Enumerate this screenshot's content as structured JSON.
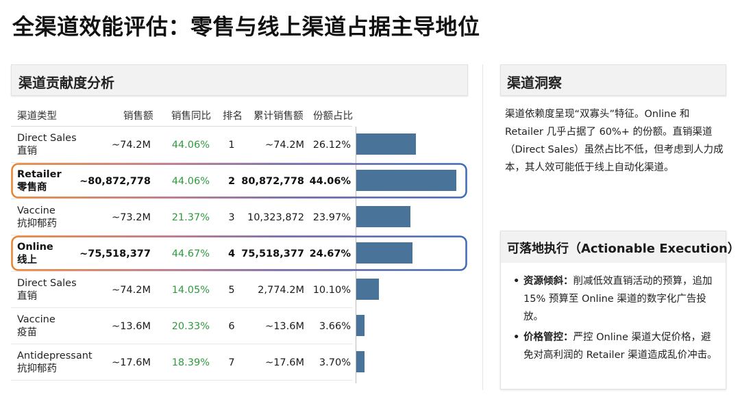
{
  "title": "全渠道效能评估：零售与线上渠道占据主导地位",
  "left_panel": {
    "title": "渠道贡献度分析"
  },
  "table": {
    "headers": [
      "渠道类型",
      "销售额",
      "销售同比",
      "排名",
      "累计销售额",
      "份额占比"
    ],
    "rows": [
      {
        "name_en": "Direct Sales",
        "name_cn": "直销",
        "sales": "~74.2M",
        "yoy": "44.06%",
        "rank": "1",
        "cumulative": "~74.2M",
        "share": "26.12%",
        "share_value": 26.12,
        "highlight": false
      },
      {
        "name_en": "Retailer",
        "name_cn": "零售商",
        "sales": "~80,872,778",
        "yoy": "44.06%",
        "rank": "2",
        "cumulative": "80,872,778",
        "share": "44.06%",
        "share_value": 44.06,
        "highlight": true
      },
      {
        "name_en": "Vaccine",
        "name_cn": "抗抑郁药",
        "sales": "~73.2M",
        "yoy": "21.37%",
        "rank": "3",
        "cumulative": "10,323,872",
        "share": "23.97%",
        "share_value": 23.97,
        "highlight": false
      },
      {
        "name_en": "Online",
        "name_cn": "线上",
        "sales": "~75,518,377",
        "yoy": "44.67%",
        "rank": "4",
        "cumulative": "75,518,377",
        "share": "24.67%",
        "share_value": 24.67,
        "highlight": true
      },
      {
        "name_en": "Direct Sales",
        "name_cn": "直销",
        "sales": "~74.2M",
        "yoy": "14.05%",
        "rank": "5",
        "cumulative": "2,774.2M",
        "share": "10.10%",
        "share_value": 10.1,
        "highlight": false
      },
      {
        "name_en": "Vaccine",
        "name_cn": "疫苗",
        "sales": "~13.6M",
        "yoy": "20.33%",
        "rank": "6",
        "cumulative": "~13.6M",
        "share": "3.66%",
        "share_value": 3.66,
        "highlight": false
      },
      {
        "name_en": "Antidepressant",
        "name_cn": "抗抑郁药",
        "sales": "~17.6M",
        "yoy": "18.39%",
        "rank": "7",
        "cumulative": "~17.6M",
        "share": "3.70%",
        "share_value": 3.7,
        "highlight": false
      }
    ]
  },
  "insight": {
    "title": "渠道洞察",
    "body": "渠道依赖度呈现“双寡头”特征。Online 和 Retailer 几乎占据了 60%+ 的份额。直销渠道（Direct Sales）虽然占比不低，但考虑到人力成本，其人效可能低于线上自动化渠道。"
  },
  "actions": {
    "title": "可落地执行（Actionable Execution）",
    "items": [
      {
        "bullet": "•",
        "label": "资源倾斜：",
        "text": "削减低效直销活动的预算，追加 15% 预算至 Online 渠道的数字化广告投放。"
      },
      {
        "bullet": "•",
        "label": "价格管控：",
        "text": "严控 Online 渠道大促价格，避免对高利润的 Retailer 渠道造成乱价冲击。"
      }
    ]
  },
  "colors": {
    "bar": "#4a7399",
    "growth_text": "#2f9a3d",
    "highlight_start": "#e8822e",
    "highlight_end": "#3e69b8"
  }
}
